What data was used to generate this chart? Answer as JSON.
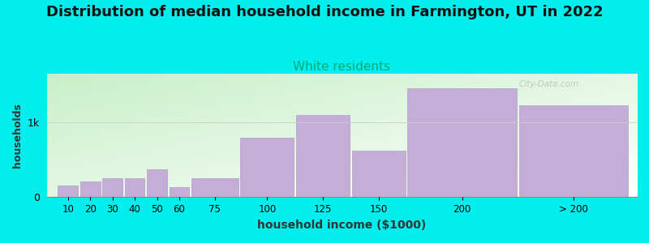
{
  "title": "Distribution of median household income in Farmington, UT in 2022",
  "subtitle": "White residents",
  "xlabel": "household income ($1000)",
  "ylabel": "households",
  "bg_color": "#00EEEE",
  "bar_color": "#C4AED8",
  "bar_edge_color": "#B09EC8",
  "categories": [
    "10",
    "20",
    "30",
    "40",
    "50",
    "60",
    "75",
    "100",
    "125",
    "150",
    "200",
    "> 200"
  ],
  "values": [
    160,
    210,
    255,
    255,
    370,
    130,
    255,
    800,
    1100,
    620,
    1460,
    1230
  ],
  "bar_lefts": [
    5,
    15,
    25,
    35,
    45,
    55,
    65,
    87,
    112,
    137,
    162,
    212
  ],
  "bar_widths": [
    9,
    9,
    9,
    9,
    9,
    9,
    21,
    24,
    24,
    24,
    49,
    49
  ],
  "ytick_label": "1k",
  "ytick_value": 1000,
  "ylim": [
    0,
    1650
  ],
  "xlim": [
    0,
    265
  ],
  "title_fontsize": 13,
  "subtitle_fontsize": 11,
  "subtitle_color": "#00AA77",
  "ylabel_fontsize": 9,
  "xlabel_fontsize": 10,
  "watermark_text": "City-Data.com",
  "grad_color_topleft": "#c8f0c8",
  "grad_color_bottomright": "#ffffff"
}
